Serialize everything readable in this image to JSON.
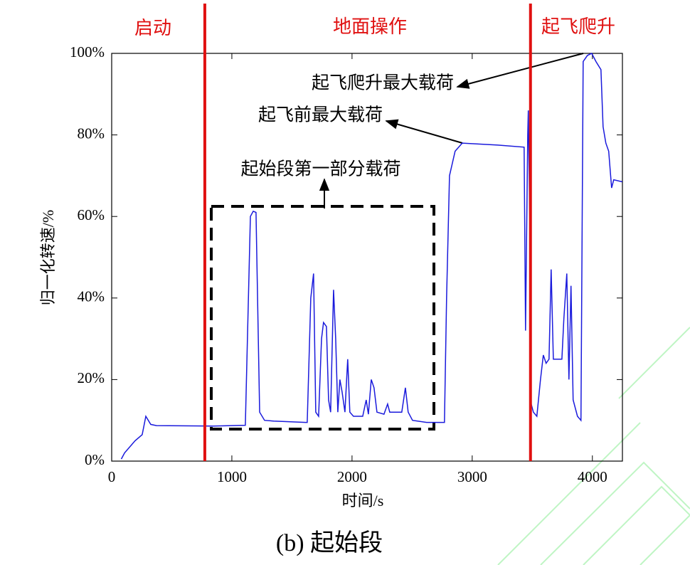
{
  "chart_data": {
    "type": "line",
    "xlabel": "时间/s",
    "ylabel": "归一化转速/%",
    "caption": "(b) 起始段",
    "phases": [
      "启动",
      "地面操作",
      "起飞爬升"
    ],
    "dividers": [
      775,
      3485
    ],
    "divider_color": "#e01010",
    "annotations": [
      "起飞爬升最大载荷",
      "起飞前最大载荷",
      "起始段第一部分载荷"
    ],
    "xlim": [
      0,
      4250
    ],
    "ylim": [
      0,
      100
    ],
    "xticks": [
      0,
      1000,
      2000,
      3000,
      4000
    ],
    "yticks": [
      {
        "value": 0,
        "label": "0%"
      },
      {
        "value": 20,
        "label": "20%"
      },
      {
        "value": 40,
        "label": "40%"
      },
      {
        "value": 60,
        "label": "60%"
      },
      {
        "value": 80,
        "label": "80%"
      },
      {
        "value": 100,
        "label": "100%"
      }
    ],
    "x": [
      80,
      107,
      195,
      254,
      284,
      325,
      373,
      846,
      1112,
      1154,
      1178,
      1201,
      1231,
      1272,
      1349,
      1615,
      1627,
      1657,
      1680,
      1698,
      1722,
      1746,
      1763,
      1787,
      1805,
      1822,
      1846,
      1864,
      1882,
      1899,
      1917,
      1941,
      1964,
      1982,
      2012,
      2089,
      2118,
      2136,
      2160,
      2183,
      2207,
      2266,
      2296,
      2314,
      2414,
      2444,
      2467,
      2503,
      2621,
      2769,
      2787,
      2811,
      2858,
      2917,
      3213,
      3432,
      3444,
      3462,
      3467,
      3479,
      3491,
      3509,
      3538,
      3568,
      3592,
      3615,
      3639,
      3657,
      3675,
      3746,
      3763,
      3787,
      3805,
      3822,
      3840,
      3876,
      3905,
      3923,
      3959,
      3994,
      4030,
      4071,
      4089,
      4112,
      4136,
      4160,
      4178,
      4249
    ],
    "series": [
      {
        "name": "归一化转速",
        "color": "#1a1adc",
        "values": [
          0.5,
          2,
          5,
          6.5,
          11,
          9,
          8.7,
          8.6,
          8.8,
          60,
          61.3,
          61,
          12,
          10,
          9.8,
          9.5,
          9.5,
          40,
          46,
          12,
          11,
          30,
          34,
          33,
          15,
          12,
          42,
          30,
          12,
          20,
          17,
          12,
          25,
          12,
          11,
          11,
          15,
          11.5,
          20,
          18,
          12,
          11.5,
          14,
          12,
          12,
          18,
          12,
          10,
          9.5,
          9.5,
          40,
          70,
          76,
          78,
          77.5,
          77,
          32,
          80,
          86,
          60,
          14,
          12,
          11,
          20,
          26,
          24,
          25,
          47,
          25,
          25,
          35,
          46,
          20,
          43,
          15,
          11,
          10,
          98,
          99.5,
          100,
          98,
          96,
          82,
          78,
          76,
          67,
          69,
          68.5
        ]
      }
    ]
  }
}
